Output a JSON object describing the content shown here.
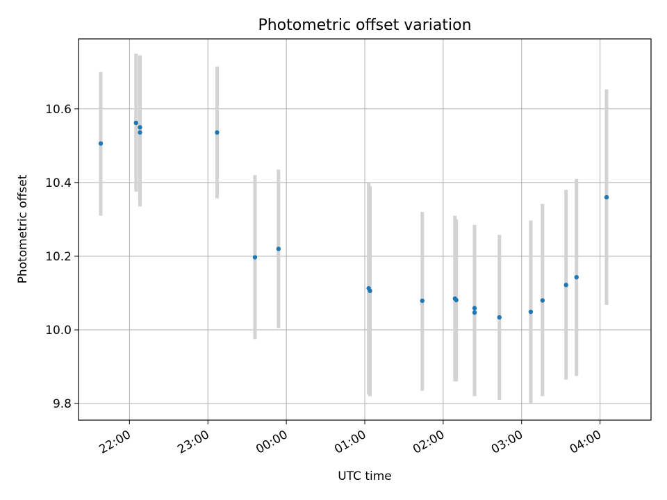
{
  "chart_data": {
    "type": "scatter",
    "title": "Photometric offset variation",
    "xlabel": "UTC time",
    "ylabel": "Photometric offset",
    "x_tick_labels": [
      "22:00",
      "23:00",
      "00:00",
      "01:00",
      "02:00",
      "03:00",
      "04:00"
    ],
    "y_tick_labels": [
      "9.8",
      "10.0",
      "10.2",
      "10.4",
      "10.6"
    ],
    "y_ticks": [
      9.8,
      10.0,
      10.2,
      10.4,
      10.6
    ],
    "xlim": [
      "21:21",
      "04:39"
    ],
    "ylim": [
      9.755,
      10.79
    ],
    "grid": true,
    "marker_color": "#1f77b4",
    "errorbar_color": "#d3d3d3",
    "points": [
      {
        "x": "21:38",
        "y": 10.506,
        "ylow": 10.31,
        "yhigh": 10.7
      },
      {
        "x": "22:05",
        "y": 10.562,
        "ylow": 10.375,
        "yhigh": 10.75
      },
      {
        "x": "22:08",
        "y": 10.55,
        "ylow": 10.355,
        "yhigh": 10.745
      },
      {
        "x": "22:08",
        "y": 10.536,
        "ylow": 10.335,
        "yhigh": 10.745
      },
      {
        "x": "23:07",
        "y": 10.536,
        "ylow": 10.357,
        "yhigh": 10.715
      },
      {
        "x": "23:36",
        "y": 10.197,
        "ylow": 9.975,
        "yhigh": 10.42
      },
      {
        "x": "23:54",
        "y": 10.22,
        "ylow": 10.005,
        "yhigh": 10.435
      },
      {
        "x": "01:03",
        "y": 10.113,
        "ylow": 9.825,
        "yhigh": 10.4
      },
      {
        "x": "01:04",
        "y": 10.106,
        "ylow": 9.82,
        "yhigh": 10.39
      },
      {
        "x": "01:44",
        "y": 10.079,
        "ylow": 9.835,
        "yhigh": 10.32
      },
      {
        "x": "02:09",
        "y": 10.085,
        "ylow": 9.86,
        "yhigh": 10.31
      },
      {
        "x": "02:10",
        "y": 10.081,
        "ylow": 9.86,
        "yhigh": 10.3
      },
      {
        "x": "02:24",
        "y": 10.059,
        "ylow": 9.83,
        "yhigh": 10.285
      },
      {
        "x": "02:24",
        "y": 10.047,
        "ylow": 9.82,
        "yhigh": 10.285
      },
      {
        "x": "02:43",
        "y": 10.034,
        "ylow": 9.81,
        "yhigh": 10.258
      },
      {
        "x": "03:07",
        "y": 10.049,
        "ylow": 9.8,
        "yhigh": 10.297
      },
      {
        "x": "03:16",
        "y": 10.08,
        "ylow": 9.82,
        "yhigh": 10.342
      },
      {
        "x": "03:34",
        "y": 10.122,
        "ylow": 9.865,
        "yhigh": 10.38
      },
      {
        "x": "03:42",
        "y": 10.143,
        "ylow": 9.875,
        "yhigh": 10.41
      },
      {
        "x": "04:05",
        "y": 10.36,
        "ylow": 10.068,
        "yhigh": 10.653
      }
    ]
  }
}
